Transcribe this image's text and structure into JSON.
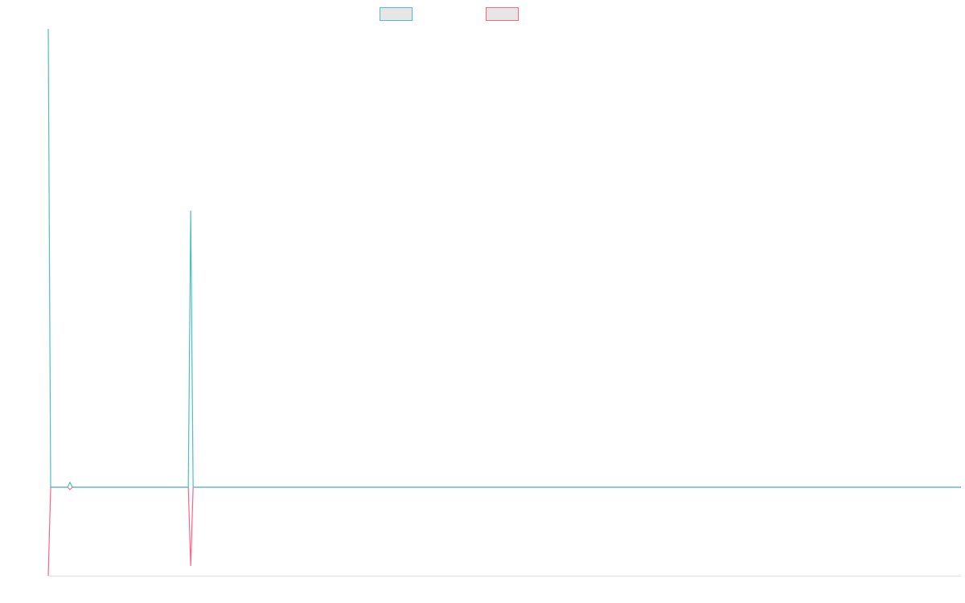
{
  "chart_data": {
    "type": "line",
    "x": [
      0,
      1,
      8,
      9,
      10,
      58,
      59,
      60,
      378
    ],
    "xlim": [
      0,
      378
    ],
    "ylim": [
      -110,
      570
    ],
    "series": [
      {
        "color": "#ff6384",
        "values": [
          -110,
          0,
          0,
          -3,
          0,
          0,
          -98,
          0,
          0
        ]
      },
      {
        "color": "#4bc0c0",
        "values": [
          570,
          0,
          0,
          6,
          0,
          0,
          344,
          0,
          0
        ]
      }
    ]
  }
}
